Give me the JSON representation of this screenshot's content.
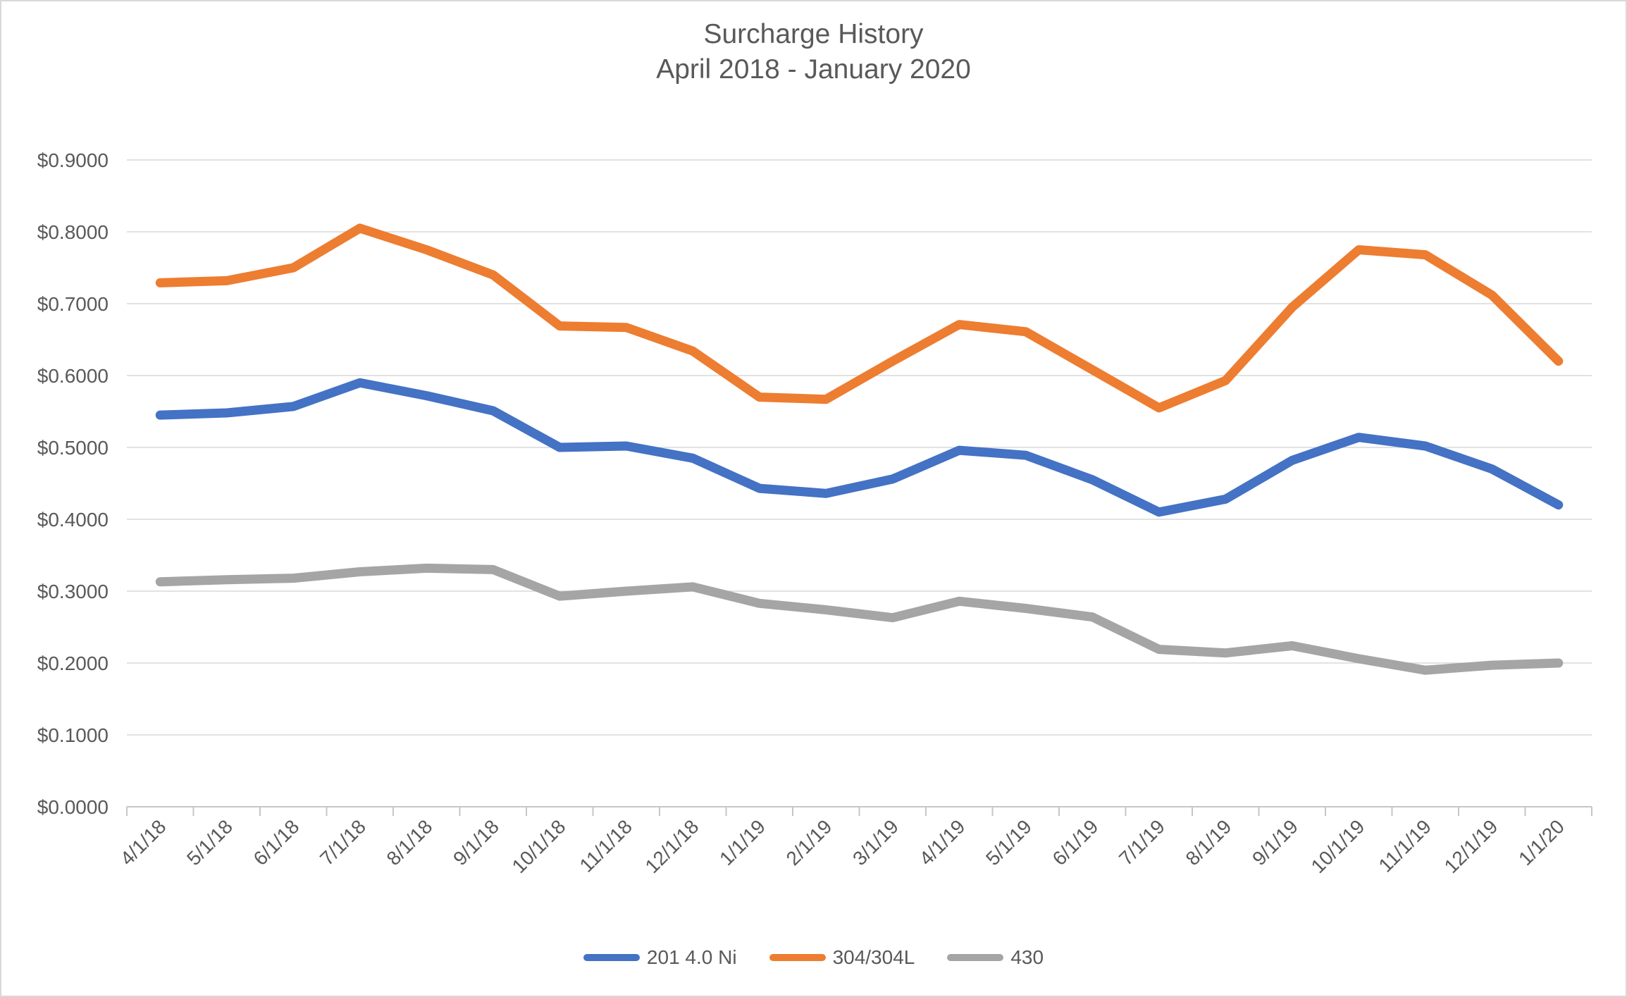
{
  "chart_data": {
    "type": "line",
    "title": "Surcharge History",
    "subtitle": "April 2018 - January 2020",
    "categories": [
      "4/1/18",
      "5/1/18",
      "6/1/18",
      "7/1/18",
      "8/1/18",
      "9/1/18",
      "10/1/18",
      "11/1/18",
      "12/1/18",
      "1/1/19",
      "2/1/19",
      "3/1/19",
      "4/1/19",
      "5/1/19",
      "6/1/19",
      "7/1/19",
      "8/1/19",
      "9/1/19",
      "10/1/19",
      "11/1/19",
      "12/1/19",
      "1/1/20"
    ],
    "series": [
      {
        "name": "201 4.0 Ni",
        "color": "#4472C4",
        "values": [
          0.545,
          0.548,
          0.557,
          0.59,
          0.572,
          0.551,
          0.5,
          0.502,
          0.485,
          0.443,
          0.436,
          0.456,
          0.496,
          0.489,
          0.455,
          0.41,
          0.428,
          0.482,
          0.514,
          0.502,
          0.47,
          0.42
        ]
      },
      {
        "name": "304/304L",
        "color": "#ED7D31",
        "values": [
          0.729,
          0.732,
          0.75,
          0.805,
          0.775,
          0.74,
          0.669,
          0.667,
          0.634,
          0.57,
          0.567,
          0.62,
          0.671,
          0.661,
          0.608,
          0.555,
          0.593,
          0.695,
          0.775,
          0.768,
          0.712,
          0.62
        ]
      },
      {
        "name": "430",
        "color": "#A5A5A5",
        "values": [
          0.313,
          0.316,
          0.318,
          0.327,
          0.332,
          0.33,
          0.293,
          0.3,
          0.306,
          0.283,
          0.274,
          0.263,
          0.286,
          0.276,
          0.264,
          0.219,
          0.214,
          0.224,
          0.206,
          0.19,
          0.197,
          0.2
        ]
      }
    ],
    "xlabel": "",
    "ylabel": "",
    "ylim": [
      0.0,
      0.9
    ],
    "y_tick_step": 0.1,
    "y_tick_format": "$0.0000",
    "y_tick_labels": [
      "$0.0000",
      "$0.1000",
      "$0.2000",
      "$0.3000",
      "$0.4000",
      "$0.5000",
      "$0.6000",
      "$0.7000",
      "$0.8000",
      "$0.9000"
    ],
    "grid": "horizontal",
    "legend_position": "bottom",
    "x_tick_rotation": -45
  },
  "style_tokens": {
    "gridline_color": "#D9D9D9",
    "axis_color": "#C6C6C6",
    "text_color": "#595959",
    "background_color": "#FFFFFF"
  }
}
